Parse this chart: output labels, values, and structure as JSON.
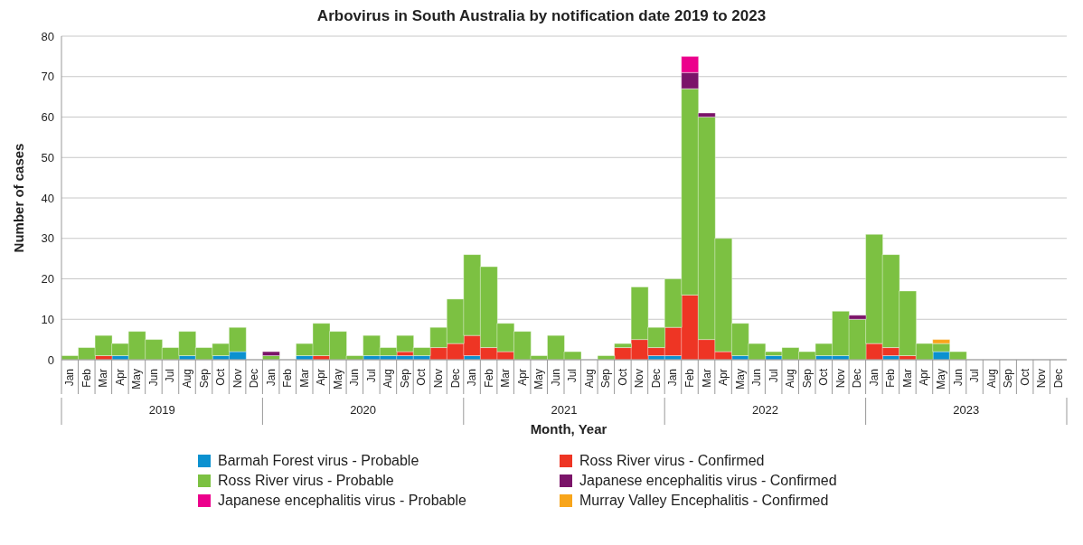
{
  "chart_data": {
    "type": "bar",
    "stacked": true,
    "title": "Arbovirus in South Australia by notification date 2019 to 2023",
    "xlabel": "Month, Year",
    "ylabel": "Number of cases",
    "categories": [
      "Jan",
      "Feb",
      "Mar",
      "Apr",
      "May",
      "Jun",
      "Jul",
      "Aug",
      "Sep",
      "Oct",
      "Nov",
      "Dec",
      "Jan",
      "Feb",
      "Mar",
      "Apr",
      "May",
      "Jun",
      "Jul",
      "Aug",
      "Sep",
      "Oct",
      "Nov",
      "Dec",
      "Jan",
      "Feb",
      "Mar",
      "Apr",
      "May",
      "Jun",
      "Jul",
      "Aug",
      "Sep",
      "Oct",
      "Nov",
      "Dec",
      "Jan",
      "Feb",
      "Mar",
      "Apr",
      "May",
      "Jun",
      "Jul",
      "Aug",
      "Sep",
      "Oct",
      "Nov",
      "Dec",
      "Jan",
      "Feb",
      "Mar",
      "Apr",
      "May",
      "Jun",
      "Jul",
      "Aug",
      "Sep",
      "Oct",
      "Nov",
      "Dec"
    ],
    "annotations": [
      "2019",
      "2020",
      "2021",
      "2022",
      "2023"
    ],
    "series": [
      {
        "name": "Barmah Forest virus  - Probable",
        "color": "#0b91d0",
        "values": [
          0,
          0,
          0,
          1,
          0,
          0,
          0,
          1,
          0,
          1,
          2,
          0,
          0,
          0,
          1,
          0,
          0,
          0,
          1,
          1,
          1,
          1,
          0,
          0,
          1,
          0,
          0,
          0,
          0,
          0,
          0,
          0,
          0,
          0,
          0,
          1,
          1,
          0,
          0,
          0,
          1,
          0,
          1,
          0,
          0,
          1,
          1,
          0,
          0,
          1,
          0,
          0,
          2,
          0,
          0,
          0,
          0,
          0,
          0,
          0
        ]
      },
      {
        "name": "Ross River virus - Confirmed",
        "color": "#ee3524",
        "values": [
          0,
          0,
          1,
          0,
          0,
          0,
          0,
          0,
          0,
          0,
          0,
          0,
          0,
          0,
          0,
          1,
          0,
          0,
          0,
          0,
          1,
          0,
          3,
          4,
          5,
          3,
          2,
          0,
          0,
          0,
          0,
          0,
          0,
          3,
          5,
          2,
          7,
          16,
          5,
          2,
          0,
          0,
          0,
          0,
          0,
          0,
          0,
          0,
          4,
          2,
          1,
          0,
          0,
          0,
          0,
          0,
          0,
          0,
          0,
          0
        ]
      },
      {
        "name": "Ross River virus - Probable",
        "color": "#7cc142",
        "values": [
          1,
          3,
          5,
          3,
          7,
          5,
          3,
          6,
          3,
          3,
          6,
          0,
          1,
          0,
          3,
          8,
          7,
          1,
          5,
          2,
          4,
          2,
          5,
          11,
          20,
          20,
          7,
          7,
          1,
          6,
          2,
          0,
          1,
          1,
          13,
          5,
          12,
          51,
          55,
          28,
          8,
          4,
          1,
          3,
          2,
          3,
          11,
          10,
          27,
          23,
          16,
          4,
          2,
          2,
          0,
          0,
          0,
          0,
          0,
          0
        ]
      },
      {
        "name": "Japanese encephalitis virus - Confirmed",
        "color": "#7b1469",
        "values": [
          0,
          0,
          0,
          0,
          0,
          0,
          0,
          0,
          0,
          0,
          0,
          0,
          1,
          0,
          0,
          0,
          0,
          0,
          0,
          0,
          0,
          0,
          0,
          0,
          0,
          0,
          0,
          0,
          0,
          0,
          0,
          0,
          0,
          0,
          0,
          0,
          0,
          4,
          1,
          0,
          0,
          0,
          0,
          0,
          0,
          0,
          0,
          1,
          0,
          0,
          0,
          0,
          0,
          0,
          0,
          0,
          0,
          0,
          0,
          0
        ]
      },
      {
        "name": "Japanese encephalitis virus - Probable",
        "color": "#ec008c",
        "values": [
          0,
          0,
          0,
          0,
          0,
          0,
          0,
          0,
          0,
          0,
          0,
          0,
          0,
          0,
          0,
          0,
          0,
          0,
          0,
          0,
          0,
          0,
          0,
          0,
          0,
          0,
          0,
          0,
          0,
          0,
          0,
          0,
          0,
          0,
          0,
          0,
          0,
          4,
          0,
          0,
          0,
          0,
          0,
          0,
          0,
          0,
          0,
          0,
          0,
          0,
          0,
          0,
          0,
          0,
          0,
          0,
          0,
          0,
          0,
          0
        ]
      },
      {
        "name": "Murray Valley Encephalitis - Confirmed",
        "color": "#f8a51b",
        "values": [
          0,
          0,
          0,
          0,
          0,
          0,
          0,
          0,
          0,
          0,
          0,
          0,
          0,
          0,
          0,
          0,
          0,
          0,
          0,
          0,
          0,
          0,
          0,
          0,
          0,
          0,
          0,
          0,
          0,
          0,
          0,
          0,
          0,
          0,
          0,
          0,
          0,
          0,
          0,
          0,
          0,
          0,
          0,
          0,
          0,
          0,
          0,
          0,
          0,
          0,
          0,
          0,
          1,
          0,
          0,
          0,
          0,
          0,
          0,
          0
        ]
      }
    ],
    "ylim": [
      0,
      80
    ],
    "yticks": [
      0,
      10,
      20,
      30,
      40,
      50,
      60,
      70,
      80
    ],
    "grid": "y",
    "legend": "bottom"
  }
}
